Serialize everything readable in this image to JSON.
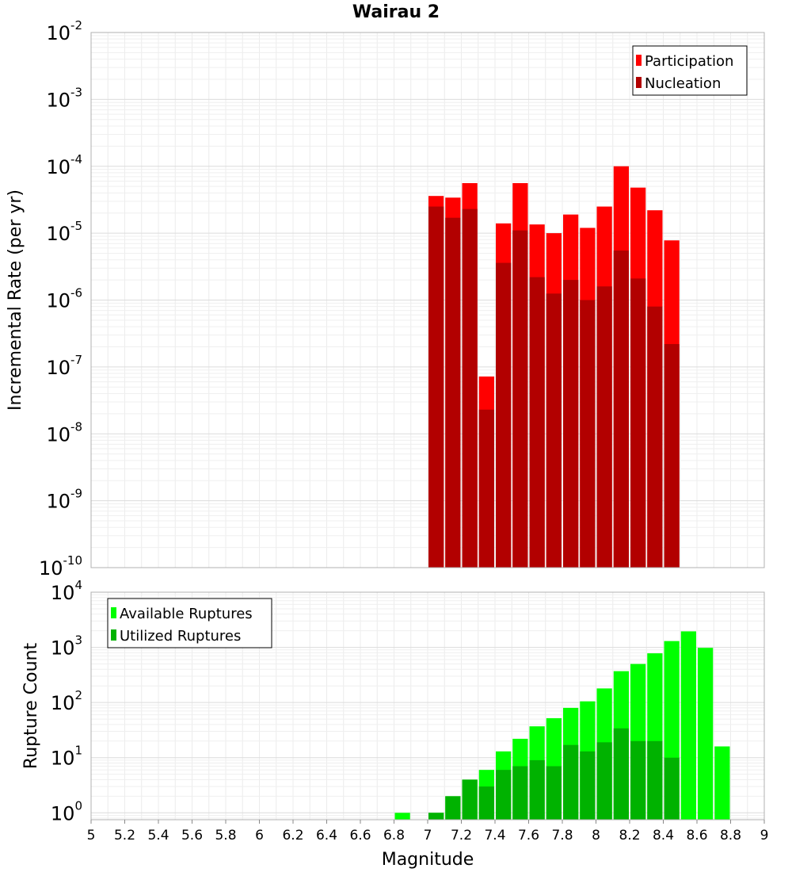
{
  "title": "Wairau 2",
  "xlabel": "Magnitude",
  "x_ticks": [
    "5",
    "5.2",
    "5.4",
    "5.6",
    "5.8",
    "6",
    "6.2",
    "6.4",
    "6.6",
    "6.8",
    "7",
    "7.2",
    "7.4",
    "7.6",
    "7.8",
    "8",
    "8.2",
    "8.4",
    "8.6",
    "8.8",
    "9"
  ],
  "colors": {
    "participation": "#ff0000",
    "nucleation": "#b20000",
    "available": "#00ff00",
    "utilized": "#00b200"
  },
  "chart_data": [
    {
      "type": "bar",
      "title": "Wairau 2",
      "xlabel": "Magnitude",
      "ylabel": "Incremental Rate (per yr)",
      "yscale": "log",
      "xlim": [
        5,
        9
      ],
      "ylim": [
        1e-10,
        0.01
      ],
      "grid": true,
      "legend_position": "top-right",
      "y_tick_exponents": [
        "-2",
        "-3",
        "-4",
        "-5",
        "-6",
        "-7",
        "-8",
        "-9",
        "-10"
      ],
      "x": [
        7.05,
        7.15,
        7.25,
        7.35,
        7.45,
        7.55,
        7.65,
        7.75,
        7.85,
        7.95,
        8.05,
        8.15,
        8.25,
        8.35,
        8.45
      ],
      "series": [
        {
          "name": "Participation",
          "color": "#ff0000",
          "values": [
            3.6e-05,
            3.4e-05,
            5.6e-05,
            7.2e-08,
            1.4e-05,
            5.6e-05,
            1.35e-05,
            1e-05,
            1.9e-05,
            1.2e-05,
            2.5e-05,
            0.0001,
            4.8e-05,
            2.2e-05,
            7.8e-06
          ]
        },
        {
          "name": "Nucleation",
          "color": "#b20000",
          "values": [
            2.5e-05,
            1.7e-05,
            2.3e-05,
            2.3e-08,
            3.6e-06,
            1.1e-05,
            2.2e-06,
            1.25e-06,
            2e-06,
            1e-06,
            1.6e-06,
            5.5e-06,
            2.1e-06,
            8e-07,
            2.2e-07
          ]
        }
      ]
    },
    {
      "type": "bar",
      "xlabel": "Magnitude",
      "ylabel": "Rupture Count",
      "yscale": "log",
      "xlim": [
        5,
        9
      ],
      "ylim": [
        0.75,
        10000
      ],
      "grid": true,
      "legend_position": "top-left",
      "y_tick_exponents": [
        "4",
        "3",
        "2",
        "1",
        "0"
      ],
      "x": [
        6.85,
        6.95,
        7.05,
        7.15,
        7.25,
        7.35,
        7.45,
        7.55,
        7.65,
        7.75,
        7.85,
        7.95,
        8.05,
        8.15,
        8.25,
        8.35,
        8.45,
        8.55,
        8.65,
        8.75
      ],
      "series": [
        {
          "name": "Available Ruptures",
          "color": "#00ff00",
          "values": [
            1,
            0,
            1,
            2,
            4,
            6,
            13,
            22,
            37,
            52,
            80,
            105,
            180,
            370,
            500,
            780,
            1300,
            1950,
            980,
            16
          ]
        },
        {
          "name": "Utilized Ruptures",
          "color": "#00b200",
          "values": [
            0,
            0,
            1,
            2,
            4,
            3,
            6,
            7,
            9,
            7,
            17,
            13,
            19,
            34,
            20,
            20,
            10,
            0,
            0,
            0
          ]
        }
      ]
    }
  ]
}
